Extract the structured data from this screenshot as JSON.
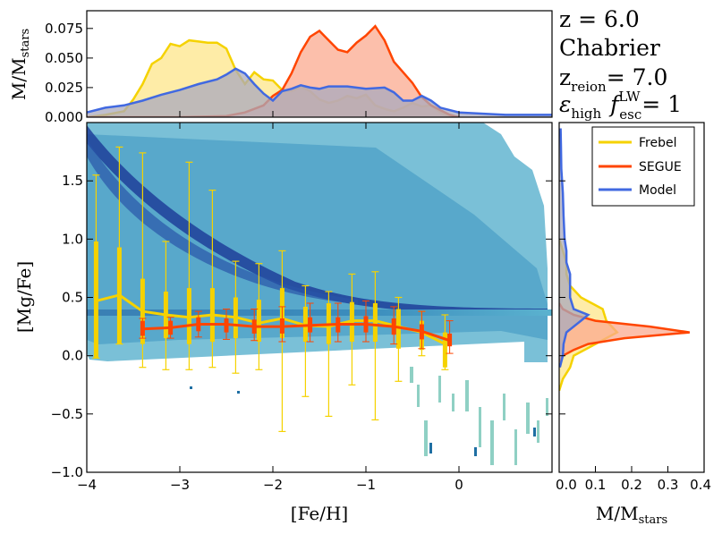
{
  "info": {
    "redshift": "z = 6.0",
    "imf": "Chabrier",
    "reion_prefix": "z",
    "reion_sub": "reion",
    "reion_value": "= 7.0",
    "eps_symbol": "ε",
    "eps_sub": "high",
    "f_symbol": "f",
    "f_sup": "LW",
    "f_sub": "esc",
    "f_value": "= 1"
  },
  "colors": {
    "frebel": "#f5d200",
    "frebel_fill": "#fde68a",
    "segue": "#ff4500",
    "segue_fill": "#fba98f",
    "model": "#4169e1",
    "model_fill": "#a9a9bd"
  },
  "chart_data": [
    {
      "type": "scatter",
      "name": "main",
      "xlabel": "[Fe/H]",
      "ylabel": "[Mg/Fe]",
      "xlim": [
        -4,
        1
      ],
      "ylim": [
        -1,
        2
      ],
      "xticks": [
        "−4",
        "−3",
        "−2",
        "−1",
        "0"
      ],
      "xtick_values": [
        -4,
        -3,
        -2,
        -1,
        0
      ],
      "yticks": [
        "−1.0",
        "−0.5",
        "0.0",
        "0.5",
        "1.0",
        "1.5"
      ],
      "ytick_values": [
        -1.0,
        -0.5,
        0.0,
        0.5,
        1.0,
        1.5
      ],
      "frebel_box": [
        {
          "x": -3.9,
          "median": 0.47,
          "q1": -0.02,
          "q3": 0.98,
          "lo": -0.02,
          "hi": 1.55
        },
        {
          "x": -3.65,
          "median": 0.52,
          "q1": 0.1,
          "q3": 0.93,
          "lo": 0.1,
          "hi": 1.79
        },
        {
          "x": -3.4,
          "median": 0.38,
          "q1": 0.1,
          "q3": 0.66,
          "lo": -0.1,
          "hi": 1.74
        },
        {
          "x": -3.15,
          "median": 0.35,
          "q1": 0.15,
          "q3": 0.55,
          "lo": -0.12,
          "hi": 0.98
        },
        {
          "x": -2.9,
          "median": 0.33,
          "q1": 0.1,
          "q3": 0.58,
          "lo": -0.12,
          "hi": 1.66
        },
        {
          "x": -2.65,
          "median": 0.35,
          "q1": 0.12,
          "q3": 0.58,
          "lo": -0.1,
          "hi": 1.42
        },
        {
          "x": -2.4,
          "median": 0.33,
          "q1": 0.15,
          "q3": 0.5,
          "lo": -0.15,
          "hi": 0.81
        },
        {
          "x": -2.15,
          "median": 0.28,
          "q1": 0.12,
          "q3": 0.48,
          "lo": -0.12,
          "hi": 0.79
        },
        {
          "x": -1.9,
          "median": 0.32,
          "q1": 0.15,
          "q3": 0.58,
          "lo": -0.65,
          "hi": 0.9
        },
        {
          "x": -1.65,
          "median": 0.26,
          "q1": 0.12,
          "q3": 0.42,
          "lo": -0.35,
          "hi": 0.6
        },
        {
          "x": -1.4,
          "median": 0.25,
          "q1": 0.1,
          "q3": 0.45,
          "lo": -0.52,
          "hi": 0.55
        },
        {
          "x": -1.15,
          "median": 0.3,
          "q1": 0.12,
          "q3": 0.46,
          "lo": -0.25,
          "hi": 0.7
        },
        {
          "x": -0.9,
          "median": 0.3,
          "q1": 0.12,
          "q3": 0.45,
          "lo": -0.55,
          "hi": 0.72
        },
        {
          "x": -0.65,
          "median": 0.25,
          "q1": 0.06,
          "q3": 0.4,
          "lo": -0.22,
          "hi": 0.5
        },
        {
          "x": -0.4,
          "median": 0.2,
          "q1": 0.05,
          "q3": 0.3,
          "lo": 0.0,
          "hi": 0.38
        },
        {
          "x": -0.15,
          "median": 0.1,
          "q1": -0.1,
          "q3": 0.2,
          "lo": -0.12,
          "hi": 0.35
        }
      ],
      "segue_points": [
        {
          "x": -3.4,
          "y": 0.23,
          "q1": 0.17,
          "q3": 0.3,
          "lo": 0.15,
          "hi": 0.32
        },
        {
          "x": -3.1,
          "y": 0.24,
          "q1": 0.18,
          "q3": 0.3,
          "lo": 0.15,
          "hi": 0.33
        },
        {
          "x": -2.8,
          "y": 0.27,
          "q1": 0.21,
          "q3": 0.33,
          "lo": 0.16,
          "hi": 0.38
        },
        {
          "x": -2.5,
          "y": 0.27,
          "q1": 0.2,
          "q3": 0.32,
          "lo": 0.14,
          "hi": 0.4
        },
        {
          "x": -2.2,
          "y": 0.25,
          "q1": 0.19,
          "q3": 0.31,
          "lo": 0.13,
          "hi": 0.4
        },
        {
          "x": -1.9,
          "y": 0.25,
          "q1": 0.19,
          "q3": 0.32,
          "lo": 0.12,
          "hi": 0.42
        },
        {
          "x": -1.6,
          "y": 0.26,
          "q1": 0.2,
          "q3": 0.33,
          "lo": 0.12,
          "hi": 0.45
        },
        {
          "x": -1.3,
          "y": 0.27,
          "q1": 0.2,
          "q3": 0.33,
          "lo": 0.12,
          "hi": 0.45
        },
        {
          "x": -1.0,
          "y": 0.27,
          "q1": 0.2,
          "q3": 0.34,
          "lo": 0.12,
          "hi": 0.47
        },
        {
          "x": -0.7,
          "y": 0.25,
          "q1": 0.18,
          "q3": 0.32,
          "lo": 0.1,
          "hi": 0.42
        },
        {
          "x": -0.4,
          "y": 0.21,
          "q1": 0.14,
          "q3": 0.27,
          "lo": 0.06,
          "hi": 0.38
        },
        {
          "x": -0.1,
          "y": 0.13,
          "q1": 0.08,
          "q3": 0.19,
          "lo": 0.02,
          "hi": 0.3
        }
      ]
    },
    {
      "type": "area",
      "name": "top-histogram",
      "ylabel": "M/M",
      "ylabel_sub": "stars",
      "xlim": [
        -4,
        1
      ],
      "ylim": [
        0,
        0.09
      ],
      "yticks": [
        "0.000",
        "0.025",
        "0.050",
        "0.075"
      ],
      "ytick_values": [
        0,
        0.025,
        0.05,
        0.075
      ],
      "series": [
        {
          "name": "Frebel",
          "x": [
            -4,
            -3.9,
            -3.8,
            -3.6,
            -3.5,
            -3.4,
            -3.3,
            -3.2,
            -3.1,
            -3.0,
            -2.9,
            -2.8,
            -2.7,
            -2.6,
            -2.5,
            -2.4,
            -2.3,
            -2.2,
            -2.1,
            -2.0,
            -1.9,
            -1.8,
            -1.7,
            -1.6,
            -1.5,
            -1.4,
            -1.3,
            -1.2,
            -1.1,
            -1.0,
            -0.9,
            -0.8,
            -0.7,
            -0.6,
            -0.5,
            -0.4,
            -0.3,
            -0.2,
            -0.1
          ],
          "values": [
            0,
            0.001,
            0.002,
            0.005,
            0.015,
            0.028,
            0.045,
            0.05,
            0.062,
            0.06,
            0.065,
            0.064,
            0.063,
            0.063,
            0.058,
            0.04,
            0.028,
            0.038,
            0.032,
            0.031,
            0.023,
            0.022,
            0.026,
            0.022,
            0.015,
            0.012,
            0.014,
            0.018,
            0.016,
            0.019,
            0.01,
            0.007,
            0.005,
            0.008,
            0.012,
            0.009,
            0.01,
            0.004,
            0.0
          ]
        },
        {
          "name": "SEGUE",
          "x": [
            -4,
            -3.0,
            -2.5,
            -2.3,
            -2.1,
            -2.0,
            -1.9,
            -1.8,
            -1.7,
            -1.6,
            -1.5,
            -1.4,
            -1.3,
            -1.2,
            -1.1,
            -1.0,
            -0.9,
            -0.8,
            -0.7,
            -0.6,
            -0.5,
            -0.4,
            -0.3,
            -0.2,
            -0.1,
            0.0
          ],
          "values": [
            0,
            0,
            0.001,
            0.004,
            0.01,
            0.018,
            0.023,
            0.037,
            0.055,
            0.068,
            0.073,
            0.065,
            0.057,
            0.055,
            0.063,
            0.069,
            0.077,
            0.065,
            0.047,
            0.038,
            0.029,
            0.017,
            0.01,
            0.006,
            0.002,
            0
          ]
        },
        {
          "name": "Model",
          "x": [
            -4,
            -3.8,
            -3.6,
            -3.4,
            -3.2,
            -3.0,
            -2.8,
            -2.6,
            -2.5,
            -2.4,
            -2.3,
            -2.2,
            -2.1,
            -2.0,
            -1.9,
            -1.8,
            -1.7,
            -1.6,
            -1.5,
            -1.4,
            -1.2,
            -1.0,
            -0.8,
            -0.7,
            -0.6,
            -0.5,
            -0.4,
            -0.3,
            -0.2,
            0.0,
            0.5,
            1.0
          ],
          "values": [
            0.004,
            0.008,
            0.01,
            0.014,
            0.019,
            0.023,
            0.028,
            0.032,
            0.036,
            0.041,
            0.037,
            0.028,
            0.02,
            0.014,
            0.022,
            0.024,
            0.027,
            0.025,
            0.024,
            0.026,
            0.026,
            0.024,
            0.025,
            0.021,
            0.014,
            0.014,
            0.018,
            0.014,
            0.008,
            0.004,
            0.002,
            0.002
          ]
        }
      ]
    },
    {
      "type": "area",
      "name": "right-histogram",
      "xlabel": "M/M",
      "xlabel_sub": "stars",
      "xlim": [
        0,
        0.4
      ],
      "ylim": [
        -1,
        2
      ],
      "xticks": [
        "0.0",
        "0.1",
        "0.2",
        "0.3",
        "0.4"
      ],
      "xtick_values": [
        0,
        0.1,
        0.2,
        0.3,
        0.4
      ],
      "series": [
        {
          "name": "Frebel",
          "y": [
            -0.3,
            -0.2,
            -0.1,
            0.0,
            0.1,
            0.2,
            0.3,
            0.4,
            0.5,
            0.6,
            0.7,
            0.8,
            0.9,
            1.0
          ],
          "values": [
            0,
            0.01,
            0.03,
            0.04,
            0.1,
            0.16,
            0.13,
            0.12,
            0.06,
            0.03,
            0.02,
            0.02,
            0.01,
            0
          ]
        },
        {
          "name": "SEGUE",
          "y": [
            -0.05,
            0.0,
            0.05,
            0.1,
            0.15,
            0.2,
            0.25,
            0.3,
            0.35,
            0.4,
            0.45
          ],
          "values": [
            0,
            0.01,
            0.04,
            0.08,
            0.18,
            0.36,
            0.25,
            0.1,
            0.04,
            0.01,
            0
          ]
        },
        {
          "name": "Model",
          "y": [
            -0.1,
            0.0,
            0.1,
            0.2,
            0.3,
            0.35,
            0.4,
            0.5,
            0.6,
            0.7,
            0.8,
            0.9,
            1.0,
            1.2,
            1.4,
            1.6,
            1.8,
            1.95
          ],
          "values": [
            0.002,
            0.01,
            0.012,
            0.02,
            0.06,
            0.08,
            0.04,
            0.03,
            0.03,
            0.03,
            0.02,
            0.02,
            0.015,
            0.012,
            0.01,
            0.006,
            0.005,
            0.004
          ]
        }
      ]
    }
  ],
  "legend": {
    "items": [
      {
        "label": "Frebel",
        "color": "#f5d200"
      },
      {
        "label": "SEGUE",
        "color": "#ff4500"
      },
      {
        "label": "Model",
        "color": "#4169e1"
      }
    ]
  }
}
